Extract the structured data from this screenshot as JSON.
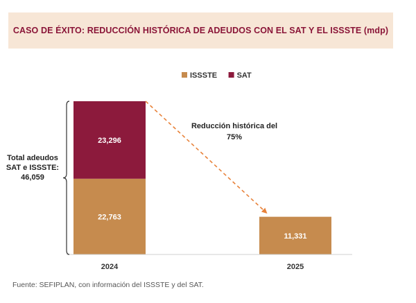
{
  "header": {
    "title": "CASO DE ÉXITO: REDUCCIÓN HISTÓRICA DE ADEUDOS CON EL SAT Y EL ISSSTE (mdp)"
  },
  "colors": {
    "issste": "#c68b4e",
    "sat": "#8c1a3c",
    "header_bg": "#f7e6d6",
    "title": "#8a1538",
    "arrow": "#e8823a",
    "value_text": "#ffffff"
  },
  "chart_data": {
    "type": "bar",
    "stacked": true,
    "categories": [
      "2024",
      "2025"
    ],
    "series": [
      {
        "name": "ISSSTE",
        "values": [
          22763,
          11331
        ],
        "labels": [
          "22,763",
          "11,331"
        ]
      },
      {
        "name": "SAT",
        "values": [
          23296,
          0
        ],
        "labels": [
          "23,296",
          ""
        ]
      }
    ],
    "ylim": [
      0,
      46059
    ],
    "legend_position": "top-center",
    "grid": false,
    "brace_label": [
      "Total adeudos",
      "SAT e ISSSTE:",
      "46,059"
    ],
    "annotation": [
      "Reducción histórica del",
      "75%"
    ]
  },
  "footer": {
    "source": "Fuente: SEFIPLAN, con información del ISSSTE y del SAT."
  }
}
